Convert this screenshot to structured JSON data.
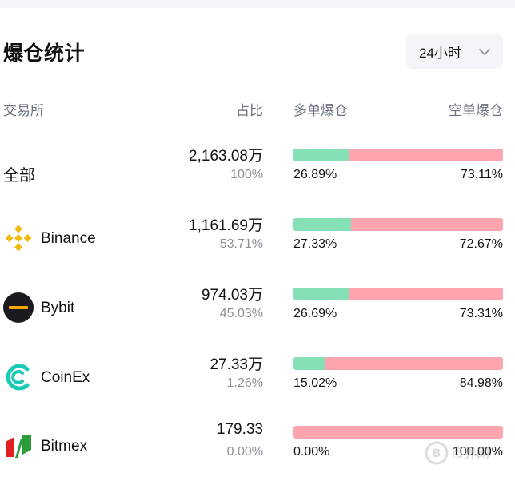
{
  "title": "爆仓统计",
  "period": {
    "label": "24小时",
    "icon": "chevron-down-icon"
  },
  "columns": {
    "exchange": "交易所",
    "share": "占比",
    "long": "多单爆仓",
    "short": "空单爆仓"
  },
  "colors": {
    "long": "#86e0b5",
    "short": "#fda4af"
  },
  "rows": [
    {
      "name": "全部",
      "icon": "",
      "amount": "2,163.08万",
      "share": "100%",
      "long_pct": "26.89%",
      "short_pct": "73.11%",
      "long_fraction": 0.2689
    },
    {
      "name": "Binance",
      "icon": "binance-logo-icon",
      "amount": "1,161.69万",
      "share": "53.71%",
      "long_pct": "27.33%",
      "short_pct": "72.67%",
      "long_fraction": 0.2733
    },
    {
      "name": "Bybit",
      "icon": "bybit-logo-icon",
      "amount": "974.03万",
      "share": "45.03%",
      "long_pct": "26.69%",
      "short_pct": "73.31%",
      "long_fraction": 0.2669
    },
    {
      "name": "CoinEx",
      "icon": "coinex-logo-icon",
      "amount": "27.33万",
      "share": "1.26%",
      "long_pct": "15.02%",
      "short_pct": "84.98%",
      "long_fraction": 0.1502
    },
    {
      "name": "Bitmex",
      "icon": "bitmex-logo-icon",
      "amount": "179.33",
      "share": "0.00%",
      "long_pct": "0.00%",
      "short_pct": "100.00%",
      "long_fraction": 0.0
    }
  ],
  "watermark": {
    "text": "币界网",
    "icon": "coin-watermark-icon"
  }
}
